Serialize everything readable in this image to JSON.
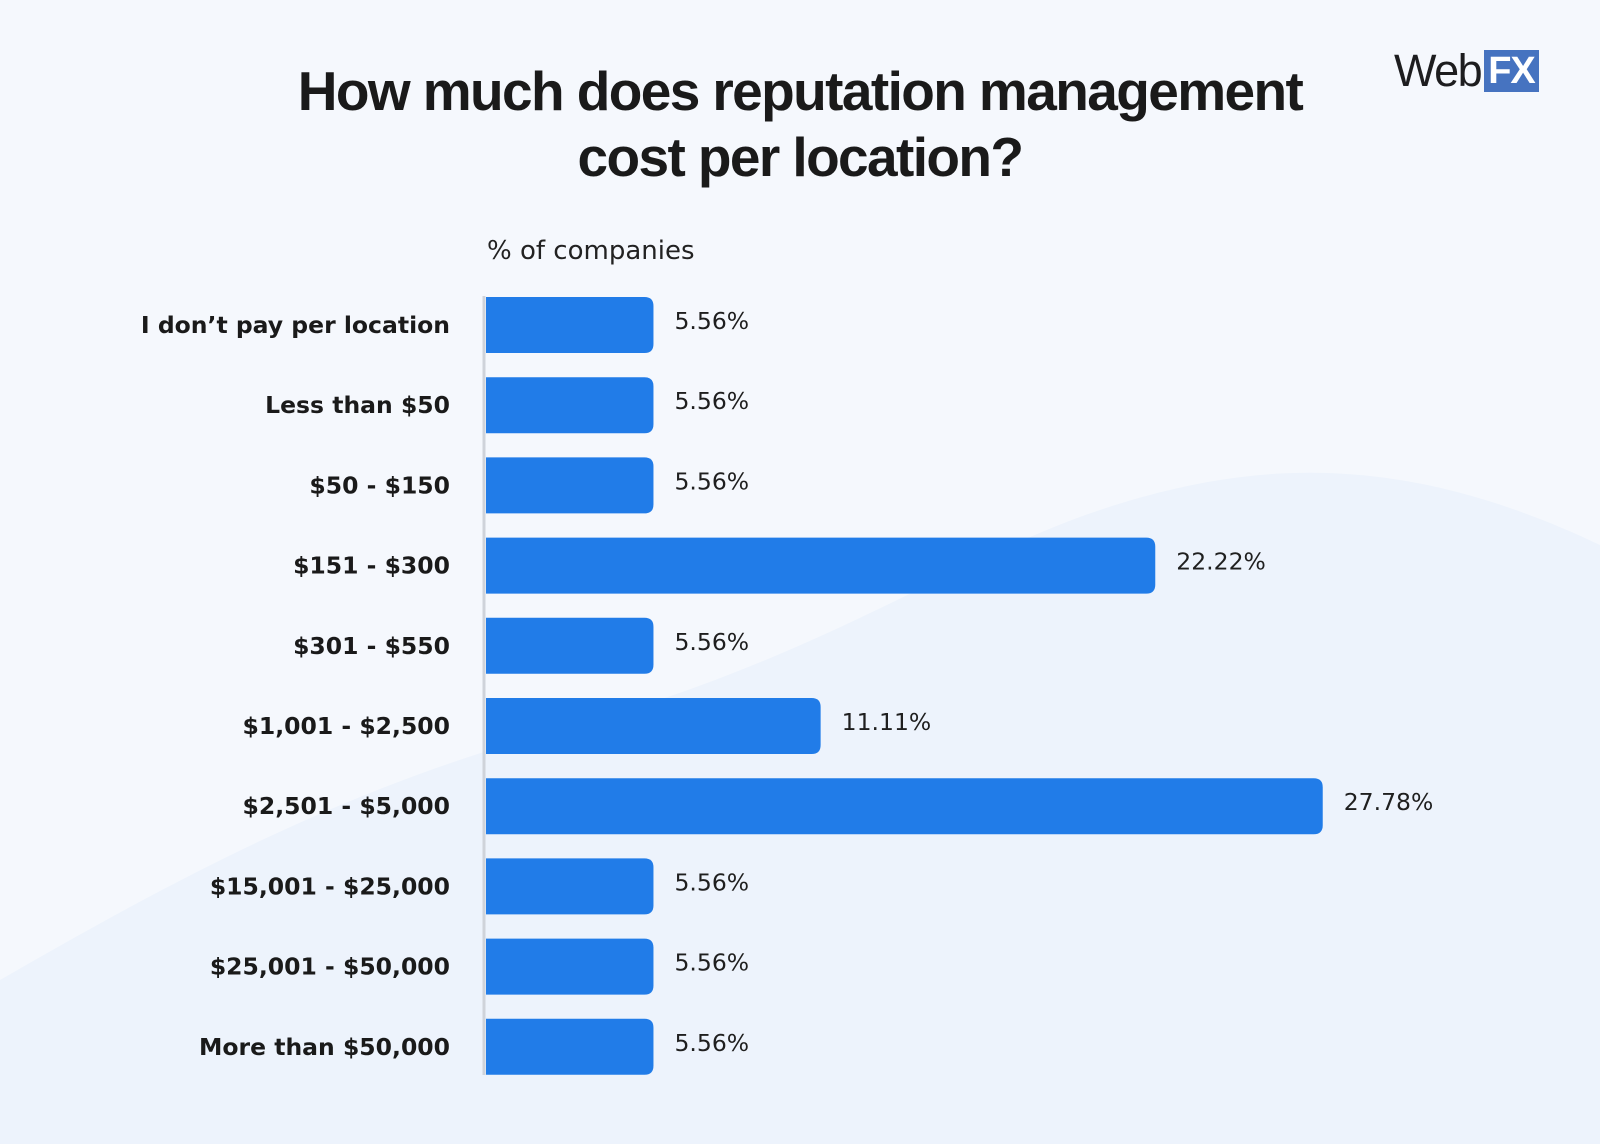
{
  "title": {
    "line1": "How much does reputation management",
    "line2": "cost per location?"
  },
  "logo": {
    "text_web": "Web",
    "text_fx": "FX"
  },
  "colors": {
    "bar": "#217ce8",
    "background": "#f5f8fd",
    "logo_fx": "#4673c0"
  },
  "chart_data": {
    "type": "bar",
    "orientation": "horizontal",
    "title": "How much does reputation management cost per location?",
    "xlabel": "% of companies",
    "ylabel": "",
    "xlim": [
      0,
      30
    ],
    "grid": false,
    "categories": [
      "I don’t pay per location",
      "Less than $50",
      "$50 - $150",
      "$151 - $300",
      "$301 - $550",
      "$1,001 - $2,500",
      "$2,501 - $5,000",
      "$15,001 - $25,000",
      "$25,001 - $50,000",
      "More than $50,000"
    ],
    "values": [
      5.56,
      5.56,
      5.56,
      22.22,
      5.56,
      11.11,
      27.78,
      5.56,
      5.56,
      5.56
    ],
    "value_labels": [
      "5.56%",
      "5.56%",
      "5.56%",
      "22.22%",
      "5.56%",
      "11.11%",
      "27.78%",
      "5.56%",
      "5.56%",
      "5.56%"
    ]
  }
}
